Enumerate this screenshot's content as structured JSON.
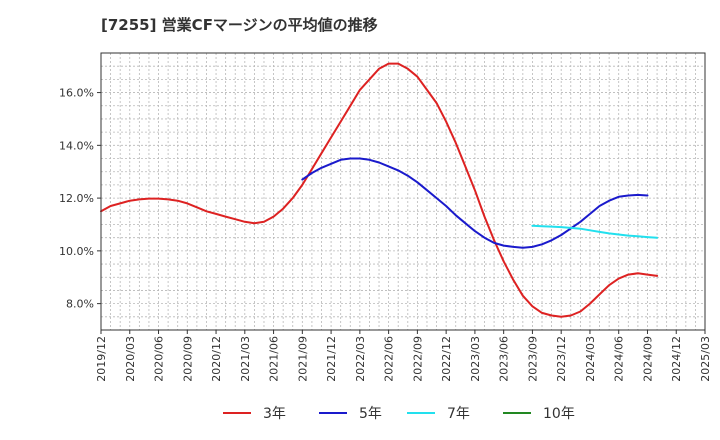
{
  "chart_data": {
    "type": "line",
    "title": "[7255]  営業CFマージンの平均値の推移",
    "xlabel": "",
    "ylabel": "",
    "ylim": [
      7.0,
      17.5
    ],
    "grid": true,
    "legend_position": "bottom",
    "y_ticks": [
      "8.0%",
      "10.0%",
      "12.0%",
      "14.0%",
      "16.0%"
    ],
    "y_tick_values": [
      8,
      10,
      12,
      14,
      16
    ],
    "x_ticks": [
      "2019/12",
      "2020/03",
      "2020/06",
      "2020/09",
      "2020/12",
      "2021/03",
      "2021/06",
      "2021/09",
      "2021/12",
      "2022/03",
      "2022/06",
      "2022/09",
      "2022/12",
      "2023/03",
      "2023/06",
      "2023/09",
      "2023/12",
      "2024/03",
      "2024/06",
      "2024/09",
      "2024/12",
      "2025/03"
    ],
    "series": [
      {
        "name": "3年",
        "color": "#dd2222",
        "points": [
          [
            "2019/12",
            11.5
          ],
          [
            "2020/01",
            11.7
          ],
          [
            "2020/02",
            11.8
          ],
          [
            "2020/03",
            11.9
          ],
          [
            "2020/04",
            11.95
          ],
          [
            "2020/05",
            11.98
          ],
          [
            "2020/06",
            11.98
          ],
          [
            "2020/07",
            11.95
          ],
          [
            "2020/08",
            11.9
          ],
          [
            "2020/09",
            11.8
          ],
          [
            "2020/10",
            11.65
          ],
          [
            "2020/11",
            11.5
          ],
          [
            "2020/12",
            11.4
          ],
          [
            "2021/01",
            11.3
          ],
          [
            "2021/02",
            11.2
          ],
          [
            "2021/03",
            11.1
          ],
          [
            "2021/04",
            11.05
          ],
          [
            "2021/05",
            11.1
          ],
          [
            "2021/06",
            11.3
          ],
          [
            "2021/07",
            11.6
          ],
          [
            "2021/08",
            12.0
          ],
          [
            "2021/09",
            12.5
          ],
          [
            "2021/10",
            13.1
          ],
          [
            "2021/11",
            13.7
          ],
          [
            "2021/12",
            14.3
          ],
          [
            "2022/01",
            14.9
          ],
          [
            "2022/02",
            15.5
          ],
          [
            "2022/03",
            16.1
          ],
          [
            "2022/04",
            16.5
          ],
          [
            "2022/05",
            16.9
          ],
          [
            "2022/06",
            17.1
          ],
          [
            "2022/07",
            17.1
          ],
          [
            "2022/08",
            16.9
          ],
          [
            "2022/09",
            16.6
          ],
          [
            "2022/10",
            16.1
          ],
          [
            "2022/11",
            15.6
          ],
          [
            "2022/12",
            14.9
          ],
          [
            "2023/01",
            14.1
          ],
          [
            "2023/02",
            13.2
          ],
          [
            "2023/03",
            12.3
          ],
          [
            "2023/04",
            11.3
          ],
          [
            "2023/05",
            10.4
          ],
          [
            "2023/06",
            9.6
          ],
          [
            "2023/07",
            8.9
          ],
          [
            "2023/08",
            8.3
          ],
          [
            "2023/09",
            7.9
          ],
          [
            "2023/10",
            7.65
          ],
          [
            "2023/11",
            7.55
          ],
          [
            "2023/12",
            7.5
          ],
          [
            "2024/01",
            7.55
          ],
          [
            "2024/02",
            7.7
          ],
          [
            "2024/03",
            8.0
          ],
          [
            "2024/04",
            8.35
          ],
          [
            "2024/05",
            8.7
          ],
          [
            "2024/06",
            8.95
          ],
          [
            "2024/07",
            9.1
          ],
          [
            "2024/08",
            9.15
          ],
          [
            "2024/09",
            9.1
          ],
          [
            "2024/10",
            9.05
          ]
        ]
      },
      {
        "name": "5年",
        "color": "#1a1acc",
        "points": [
          [
            "2021/09",
            12.7
          ],
          [
            "2021/10",
            12.95
          ],
          [
            "2021/11",
            13.15
          ],
          [
            "2021/12",
            13.3
          ],
          [
            "2022/01",
            13.45
          ],
          [
            "2022/02",
            13.5
          ],
          [
            "2022/03",
            13.5
          ],
          [
            "2022/04",
            13.45
          ],
          [
            "2022/05",
            13.35
          ],
          [
            "2022/06",
            13.2
          ],
          [
            "2022/07",
            13.05
          ],
          [
            "2022/08",
            12.85
          ],
          [
            "2022/09",
            12.6
          ],
          [
            "2022/10",
            12.3
          ],
          [
            "2022/11",
            12.0
          ],
          [
            "2022/12",
            11.7
          ],
          [
            "2023/01",
            11.35
          ],
          [
            "2023/02",
            11.05
          ],
          [
            "2023/03",
            10.75
          ],
          [
            "2023/04",
            10.5
          ],
          [
            "2023/05",
            10.3
          ],
          [
            "2023/06",
            10.2
          ],
          [
            "2023/07",
            10.15
          ],
          [
            "2023/08",
            10.12
          ],
          [
            "2023/09",
            10.15
          ],
          [
            "2023/10",
            10.25
          ],
          [
            "2023/11",
            10.4
          ],
          [
            "2023/12",
            10.6
          ],
          [
            "2024/01",
            10.85
          ],
          [
            "2024/02",
            11.1
          ],
          [
            "2024/03",
            11.4
          ],
          [
            "2024/04",
            11.7
          ],
          [
            "2024/05",
            11.9
          ],
          [
            "2024/06",
            12.05
          ],
          [
            "2024/07",
            12.1
          ],
          [
            "2024/08",
            12.12
          ],
          [
            "2024/09",
            12.1
          ]
        ]
      },
      {
        "name": "7年",
        "color": "#22e0ee",
        "points": [
          [
            "2023/09",
            10.95
          ],
          [
            "2023/10",
            10.93
          ],
          [
            "2023/11",
            10.92
          ],
          [
            "2023/12",
            10.9
          ],
          [
            "2024/01",
            10.87
          ],
          [
            "2024/02",
            10.84
          ],
          [
            "2024/03",
            10.78
          ],
          [
            "2024/04",
            10.72
          ],
          [
            "2024/05",
            10.66
          ],
          [
            "2024/06",
            10.62
          ],
          [
            "2024/07",
            10.58
          ],
          [
            "2024/08",
            10.55
          ],
          [
            "2024/09",
            10.52
          ],
          [
            "2024/10",
            10.5
          ]
        ]
      },
      {
        "name": "10年",
        "color": "#228822",
        "points": []
      }
    ]
  }
}
